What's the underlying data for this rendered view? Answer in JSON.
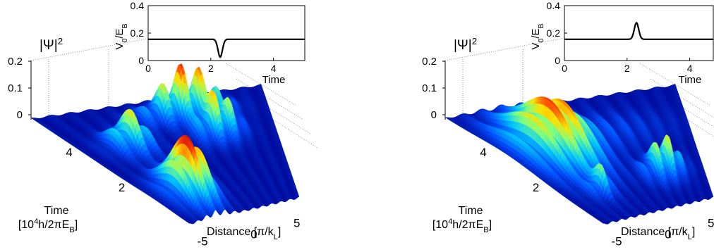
{
  "chart_data": [
    {
      "type": "surface",
      "panel": "left",
      "zlabel": "|Ψ|",
      "zlabel_sup": "2",
      "z_ticks": [
        "0",
        "0.1",
        "0.2"
      ],
      "ylabel": "Time",
      "ylabel_units_pre": "[10",
      "ylabel_units_sup": "4",
      "ylabel_units_post": "h/2πE",
      "ylabel_units_sub": "B",
      "ylabel_units_close": "]",
      "y_ticks": [
        "2",
        "4"
      ],
      "xlabel": "Distance  [π/k",
      "xlabel_sub": "L",
      "xlabel_close": "]",
      "x_ticks": [
        "-5",
        "0",
        "5"
      ],
      "colormap": [
        "#00008f",
        "#0050ff",
        "#00c8ff",
        "#7fff7f",
        "#ffe000",
        "#ff4000",
        "#b00000"
      ],
      "peaks": [
        {
          "x": -3.0,
          "t": 1.3,
          "height": 0.2,
          "width_x": 1.6,
          "width_t": 0.9
        },
        {
          "x": -3.2,
          "t": 3.9,
          "height": 0.13,
          "width_x": 1.2,
          "width_t": 0.6
        },
        {
          "x": 2.4,
          "t": 3.9,
          "height": 0.15,
          "width_x": 1.3,
          "width_t": 0.6
        },
        {
          "x": 1.3,
          "t": 5.0,
          "height": 0.18,
          "width_x": 2.0,
          "width_t": 0.5
        }
      ],
      "inset": {
        "type": "line",
        "ylabel": "V",
        "ylabel_sub1": "0",
        "ylabel_mid": "/E",
        "ylabel_sub2": "B",
        "xlabel": "Time",
        "xlim": [
          0,
          5
        ],
        "ylim": [
          0,
          0.4
        ],
        "y_ticks": [
          "0",
          "0.2",
          "0.4"
        ],
        "x_ticks": [
          "0",
          "2",
          "4"
        ],
        "baseline": 0.155,
        "feature": {
          "center": 2.3,
          "amplitude": -0.13,
          "width": 0.1
        }
      }
    },
    {
      "type": "surface",
      "panel": "right",
      "zlabel": "|Ψ|",
      "zlabel_sup": "2",
      "z_ticks": [
        "0",
        "0.1",
        "0.2"
      ],
      "ylabel": "Time",
      "ylabel_units_pre": "[10",
      "ylabel_units_sup": "4",
      "ylabel_units_post": "h/2πE",
      "ylabel_units_sub": "B",
      "ylabel_units_close": "]",
      "y_ticks": [
        "2",
        "4"
      ],
      "xlabel": "Distance  [π/k",
      "xlabel_sub": "L",
      "xlabel_close": "]",
      "x_ticks": [
        "-5",
        "0",
        "5"
      ],
      "colormap": [
        "#00008f",
        "#0050ff",
        "#00c8ff",
        "#7fff7f",
        "#ffe000",
        "#ff4000",
        "#b00000"
      ],
      "peaks": [
        {
          "x": -3.0,
          "t": 3.6,
          "height": 0.17,
          "width_x": 2.2,
          "width_t": 1.6
        },
        {
          "x": -3.2,
          "t": 1.3,
          "height": 0.08,
          "width_x": 0.8,
          "width_t": 0.35
        },
        {
          "x": 2.8,
          "t": 1.7,
          "height": 0.13,
          "width_x": 1.5,
          "width_t": 0.6
        },
        {
          "x": 1.0,
          "t": 4.0,
          "height": 0.025,
          "width_x": 4.0,
          "width_t": 1.0
        }
      ],
      "inset": {
        "type": "line",
        "ylabel": "V",
        "ylabel_sub1": "0",
        "ylabel_mid": "/E",
        "ylabel_sub2": "B",
        "xlabel": "Time",
        "xlim": [
          0,
          5
        ],
        "ylim": [
          0,
          0.4
        ],
        "y_ticks": [
          "0",
          "0.2",
          "0.4"
        ],
        "x_ticks": [
          "0",
          "2",
          "4"
        ],
        "baseline": 0.155,
        "feature": {
          "center": 2.3,
          "amplitude": 0.12,
          "width": 0.1
        }
      }
    }
  ]
}
